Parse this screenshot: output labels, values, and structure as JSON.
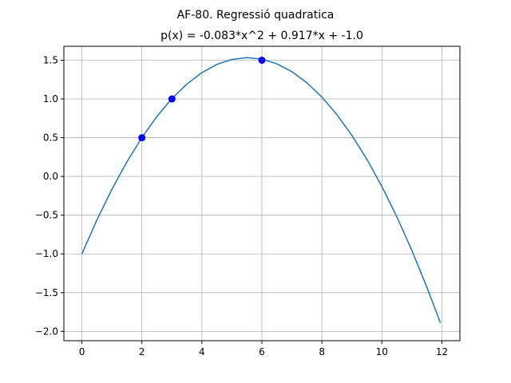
{
  "chart_data": {
    "type": "line",
    "suptitle": "AF-80. Regressió quadratica",
    "title": "p(x) = -0.083*x^2 + 0.917*x + -1.0",
    "xlabel": "",
    "ylabel": "",
    "xlim": [
      -0.6,
      12.6
    ],
    "ylim": [
      -2.12,
      1.68
    ],
    "grid": true,
    "x_ticks": [
      0,
      2,
      4,
      6,
      8,
      10,
      12
    ],
    "x_tick_labels": [
      "0",
      "2",
      "4",
      "6",
      "8",
      "10",
      "12"
    ],
    "y_ticks": [
      -2.0,
      -1.5,
      -1.0,
      -0.5,
      0.0,
      0.5,
      1.0,
      1.5
    ],
    "y_tick_labels": [
      "−2.0",
      "−1.5",
      "−1.0",
      "−0.5",
      "0.0",
      "0.5",
      "1.0",
      "1.5"
    ],
    "series": [
      {
        "kind": "curve",
        "color": "#1f77b4",
        "x": [
          0,
          0.5,
          1,
          1.5,
          2,
          2.5,
          3,
          3.5,
          4,
          4.5,
          5,
          5.5,
          6,
          6.5,
          7,
          7.5,
          8,
          8.5,
          9,
          9.5,
          10,
          10.5,
          11,
          11.5,
          11.95
        ],
        "y": [
          -1.0,
          -0.562,
          -0.166,
          0.188,
          0.502,
          0.774,
          1.004,
          1.193,
          1.34,
          1.446,
          1.51,
          1.533,
          1.514,
          1.453,
          1.352,
          1.209,
          1.024,
          0.798,
          0.53,
          0.221,
          -0.13,
          -0.522,
          -0.956,
          -1.431,
          -1.89
        ]
      },
      {
        "kind": "points",
        "color": "#0000ff",
        "x": [
          2,
          3,
          6
        ],
        "y": [
          0.5,
          1.0,
          1.5
        ]
      }
    ]
  }
}
